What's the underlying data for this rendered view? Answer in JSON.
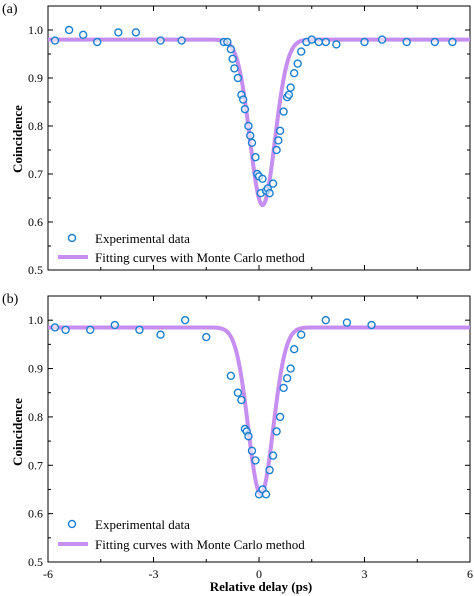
{
  "chart_data": [
    {
      "type": "scatter",
      "panel_label": "(a)",
      "xlabel": "",
      "ylabel": "Coincidence",
      "xlim": [
        -6,
        6
      ],
      "ylim": [
        0.5,
        1.05
      ],
      "yticks": [
        "0.5",
        "0.6",
        "0.7",
        "0.8",
        "0.9",
        "1.0"
      ],
      "xticks": [],
      "legend_position": "bottom-left",
      "colors": {
        "marker": "#1a7fd0",
        "fit": "#c58ef0"
      },
      "series": [
        {
          "name": "Experimental data",
          "kind": "scatter",
          "x": [
            -5.8,
            -5.4,
            -5.0,
            -4.6,
            -4.0,
            -3.5,
            -2.8,
            -2.2,
            -1.0,
            -0.9,
            -0.8,
            -0.75,
            -0.7,
            -0.6,
            -0.5,
            -0.45,
            -0.4,
            -0.3,
            -0.25,
            -0.2,
            -0.1,
            -0.05,
            0.0,
            0.05,
            0.1,
            0.2,
            0.25,
            0.3,
            0.4,
            0.5,
            0.55,
            0.6,
            0.7,
            0.8,
            0.85,
            0.9,
            1.0,
            1.1,
            1.2,
            1.35,
            1.5,
            1.7,
            1.9,
            2.2,
            3.0,
            3.5,
            4.2,
            5.0,
            5.5
          ],
          "y": [
            0.978,
            1.0,
            0.99,
            0.975,
            0.995,
            0.995,
            0.978,
            0.978,
            0.975,
            0.975,
            0.96,
            0.94,
            0.92,
            0.9,
            0.865,
            0.855,
            0.835,
            0.8,
            0.78,
            0.765,
            0.735,
            0.7,
            0.695,
            0.66,
            0.69,
            0.665,
            0.67,
            0.66,
            0.68,
            0.75,
            0.77,
            0.79,
            0.83,
            0.86,
            0.865,
            0.88,
            0.91,
            0.93,
            0.955,
            0.975,
            0.98,
            0.975,
            0.975,
            0.97,
            0.975,
            0.98,
            0.975,
            0.975,
            0.975
          ]
        },
        {
          "name": "Fitting curves with Monte Carlo method",
          "kind": "line",
          "baseline": 0.98,
          "dip_center": 0.1,
          "dip_depth": 0.345,
          "dip_width": 0.5
        }
      ]
    },
    {
      "type": "scatter",
      "panel_label": "(b)",
      "xlabel": "Relative delay (ps)",
      "ylabel": "Coincidence",
      "xlim": [
        -6,
        6
      ],
      "ylim": [
        0.5,
        1.05
      ],
      "yticks": [
        "0.5",
        "0.6",
        "0.7",
        "0.8",
        "0.9",
        "1.0"
      ],
      "xticks": [
        "-6",
        "-3",
        "0",
        "3",
        "6"
      ],
      "legend_position": "bottom-left",
      "colors": {
        "marker": "#1a7fd0",
        "fit": "#c58ef0"
      },
      "series": [
        {
          "name": "Experimental data",
          "kind": "scatter",
          "x": [
            -5.8,
            -5.5,
            -4.8,
            -4.1,
            -3.4,
            -2.8,
            -2.1,
            -1.5,
            -0.8,
            -0.6,
            -0.5,
            -0.4,
            -0.35,
            -0.3,
            -0.2,
            -0.1,
            0.0,
            0.1,
            0.2,
            0.3,
            0.4,
            0.5,
            0.6,
            0.7,
            0.8,
            0.9,
            1.0,
            1.2,
            1.9,
            2.5,
            3.2
          ],
          "y": [
            0.985,
            0.98,
            0.98,
            0.99,
            0.98,
            0.97,
            1.0,
            0.965,
            0.885,
            0.85,
            0.835,
            0.775,
            0.77,
            0.76,
            0.73,
            0.71,
            0.64,
            0.65,
            0.64,
            0.69,
            0.72,
            0.77,
            0.8,
            0.86,
            0.88,
            0.9,
            0.94,
            0.97,
            1.0,
            0.995,
            0.99
          ]
        },
        {
          "name": "Fitting curves with Monte Carlo method",
          "kind": "line",
          "baseline": 0.985,
          "dip_center": 0.05,
          "dip_depth": 0.345,
          "dip_width": 0.5
        }
      ]
    }
  ]
}
